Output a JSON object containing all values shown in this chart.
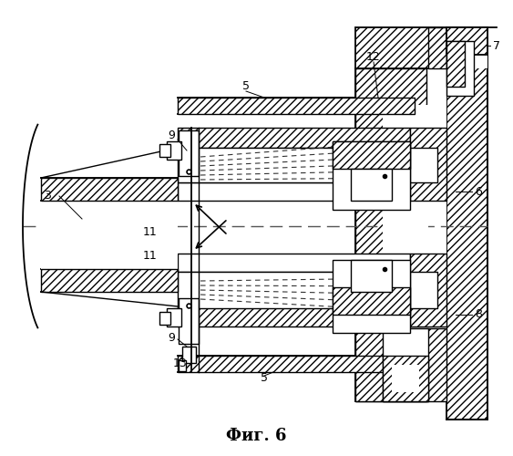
{
  "title": "Фиг. 6",
  "bg_color": "#ffffff",
  "line_color": "#000000",
  "fig_width": 5.63,
  "fig_height": 5.0,
  "dpi": 100
}
